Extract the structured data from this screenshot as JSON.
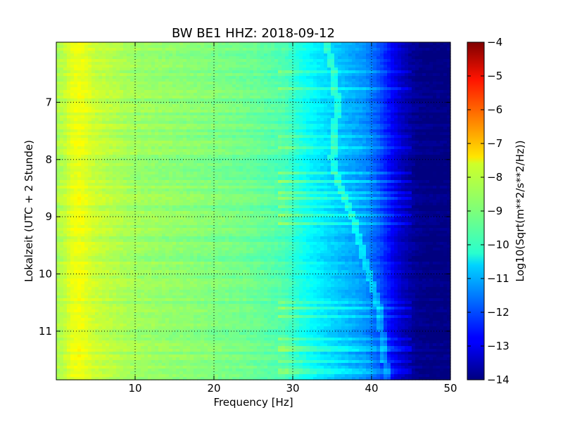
{
  "chart_data": {
    "type": "heatmap",
    "title": "BW BE1 HHZ: 2018-09-12",
    "xlabel": "Frequency [Hz]",
    "ylabel": "Lokalzeit (UTC + 2 Stunde)",
    "colorbar_label": "Log10(Sqrt(m**2/s**2/Hz))",
    "xlim": [
      0,
      50
    ],
    "ylim": [
      11.85,
      5.95
    ],
    "y_inverted": true,
    "x_ticks": [
      10,
      20,
      30,
      40,
      50
    ],
    "x_tick_labels": [
      "10",
      "20",
      "30",
      "40",
      "50"
    ],
    "y_ticks": [
      7,
      8,
      9,
      10,
      11
    ],
    "y_tick_labels": [
      "7",
      "8",
      "9",
      "10",
      "11"
    ],
    "color_range": [
      -14,
      -4
    ],
    "colorbar_ticks": [
      -4,
      -5,
      -6,
      -7,
      -8,
      -9,
      -10,
      -11,
      -12,
      -13,
      -14
    ],
    "colorbar_tick_labels": [
      "−4",
      "−5",
      "−6",
      "−7",
      "−8",
      "−9",
      "−10",
      "−11",
      "−12",
      "−13",
      "−14"
    ],
    "colormap": "jet",
    "grid": true,
    "grid_style": "dotted",
    "spectrum_profile": {
      "frequency_hz": [
        0,
        1,
        2,
        3,
        5,
        10,
        15,
        20,
        25,
        29,
        31,
        33,
        35,
        37,
        39,
        40,
        41,
        42,
        43,
        44,
        45,
        46,
        48,
        50
      ],
      "log10_amplitude": [
        -8.6,
        -8.4,
        -8.0,
        -7.9,
        -8.3,
        -8.7,
        -8.85,
        -9.0,
        -9.2,
        -9.5,
        -10.0,
        -10.4,
        -10.7,
        -11.0,
        -11.3,
        -11.6,
        -12.0,
        -12.5,
        -13.0,
        -13.4,
        -13.7,
        -13.9,
        -14.0,
        -14.0
      ]
    },
    "bright_time_bands_hour": [
      6.45,
      6.48,
      6.78,
      7.6,
      7.78,
      8.22,
      8.4,
      8.58,
      8.68,
      8.83,
      8.98,
      9.1,
      10.52,
      10.62,
      10.72,
      11.15,
      11.28,
      11.32,
      11.55,
      11.7,
      11.75
    ],
    "spectral_line": {
      "hour": [
        5.95,
        6.5,
        7.0,
        7.5,
        8.0,
        8.5,
        9.0,
        9.5,
        10.0,
        10.5,
        11.0,
        11.5,
        11.85
      ],
      "frequency_hz": [
        34.2,
        35.2,
        35.6,
        35.4,
        35.0,
        36.0,
        37.6,
        38.6,
        39.6,
        40.8,
        41.3,
        41.7,
        41.9
      ]
    }
  }
}
